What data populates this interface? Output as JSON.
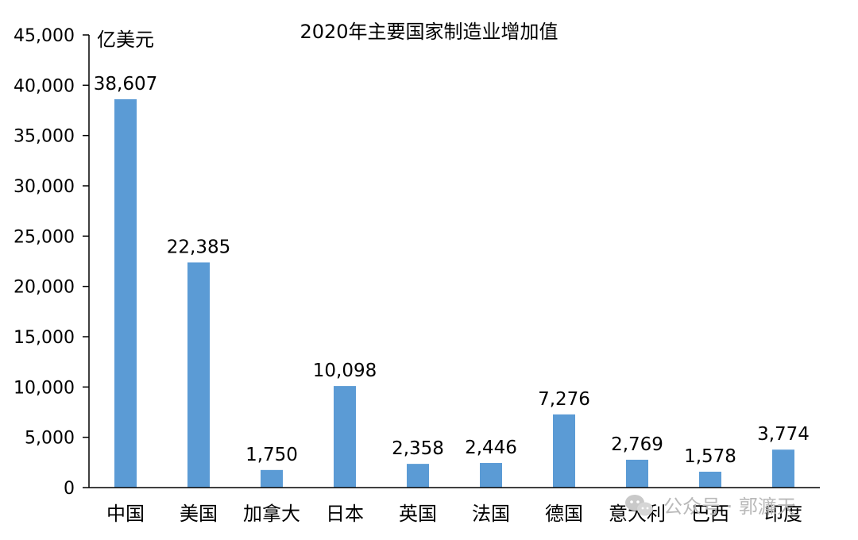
{
  "chart_data": {
    "type": "bar",
    "title": "2020年主要国家制造业增加值",
    "unit_label": "亿美元",
    "categories": [
      "中国",
      "美国",
      "加拿大",
      "日本",
      "英国",
      "法国",
      "德国",
      "意大利",
      "巴西",
      "印度"
    ],
    "values": [
      38607,
      22385,
      1750,
      10098,
      2358,
      2446,
      7276,
      2769,
      1578,
      3774
    ],
    "value_labels": [
      "38,607",
      "22,385",
      "1,750",
      "10,098",
      "2,358",
      "2,446",
      "7,276",
      "2,769",
      "1,578",
      "3,774"
    ],
    "y_ticks": [
      0,
      5000,
      10000,
      15000,
      20000,
      25000,
      30000,
      35000,
      40000,
      45000
    ],
    "y_tick_labels": [
      "0",
      "5,000",
      "10,000",
      "15,000",
      "20,000",
      "25,000",
      "30,000",
      "35,000",
      "40,000",
      "45,000"
    ],
    "ylim": [
      0,
      45000
    ],
    "grid": false,
    "legend": "none",
    "bar_color": "#5b9bd5",
    "axis_color": "#000000"
  },
  "watermark": {
    "text": "公众号 · 郭濂天",
    "icon": "wechat-icon"
  }
}
